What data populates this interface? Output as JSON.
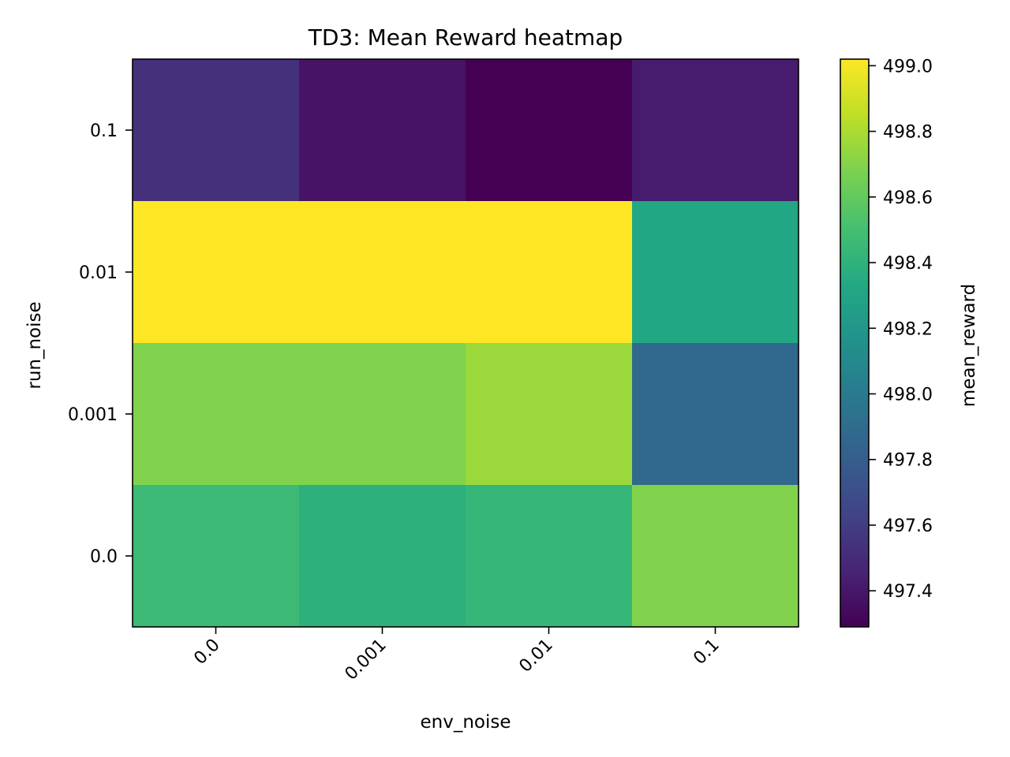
{
  "chart_data": {
    "type": "heatmap",
    "title": "TD3: Mean Reward heatmap",
    "xlabel": "env_noise",
    "ylabel": "run_noise",
    "x_categories": [
      "0.0",
      "0.001",
      "0.01",
      "0.1"
    ],
    "y_categories": [
      "0.1",
      "0.01",
      "0.001",
      "0.0"
    ],
    "values": [
      [
        497.53,
        497.38,
        497.29,
        497.42
      ],
      [
        499.02,
        499.02,
        499.02,
        498.32
      ],
      [
        498.69,
        498.69,
        498.76,
        497.87
      ],
      [
        498.46,
        498.39,
        498.43,
        498.69
      ]
    ],
    "colorbar": {
      "label": "mean_reward",
      "min": 497.29,
      "max": 499.02,
      "ticks": [
        497.4,
        497.6,
        497.8,
        498.0,
        498.2,
        498.4,
        498.6,
        498.8,
        499.0
      ],
      "tick_labels": [
        "497.4",
        "497.6",
        "497.8",
        "498.0",
        "498.2",
        "498.4",
        "498.6",
        "498.8",
        "499.0"
      ],
      "colormap": "viridis"
    },
    "grid": false
  }
}
